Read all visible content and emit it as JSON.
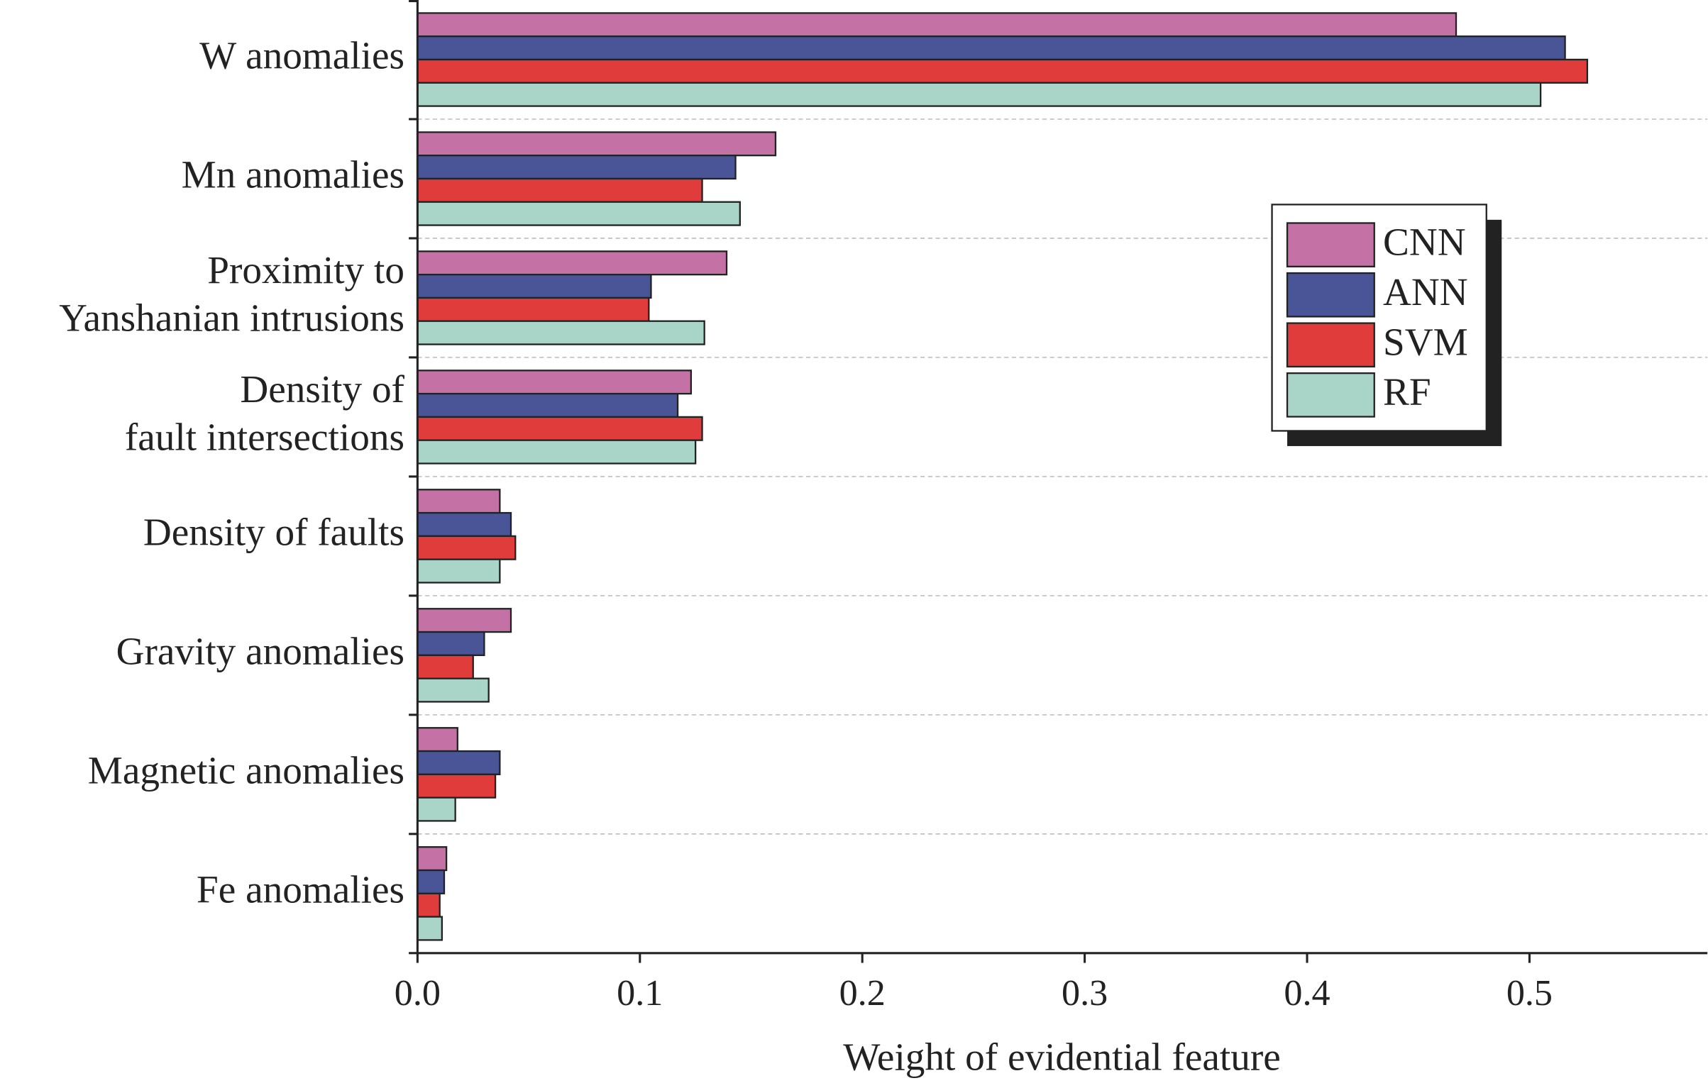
{
  "chart_data": {
    "type": "hbar",
    "x_label": "Weight of evidential feature",
    "categories": [
      "W anomalies",
      "Mn anomalies",
      "Proximity to\nYanshanian intrusions",
      "Density of\nfault intersections",
      "Density of faults",
      "Gravity anomalies",
      "Magnetic anomalies",
      "Fe anomalies"
    ],
    "series": [
      {
        "name": "CNN",
        "color": "#c472a6",
        "values": [
          0.467,
          0.161,
          0.139,
          0.123,
          0.037,
          0.042,
          0.018,
          0.013
        ]
      },
      {
        "name": "ANN",
        "color": "#4a5597",
        "values": [
          0.516,
          0.143,
          0.105,
          0.117,
          0.042,
          0.03,
          0.037,
          0.012
        ]
      },
      {
        "name": "SVM",
        "color": "#e03c3c",
        "values": [
          0.526,
          0.128,
          0.104,
          0.128,
          0.044,
          0.025,
          0.035,
          0.01
        ]
      },
      {
        "name": "RF",
        "color": "#a8d5c8",
        "values": [
          0.505,
          0.145,
          0.129,
          0.125,
          0.037,
          0.032,
          0.017,
          0.011
        ]
      }
    ],
    "xlim": [
      0,
      0.58
    ],
    "xticks": [
      {
        "value": 0,
        "label": "0.0"
      },
      0.1,
      0.2,
      0.3,
      0.4,
      0.5
    ],
    "grid": true,
    "legend": "upper-right"
  }
}
